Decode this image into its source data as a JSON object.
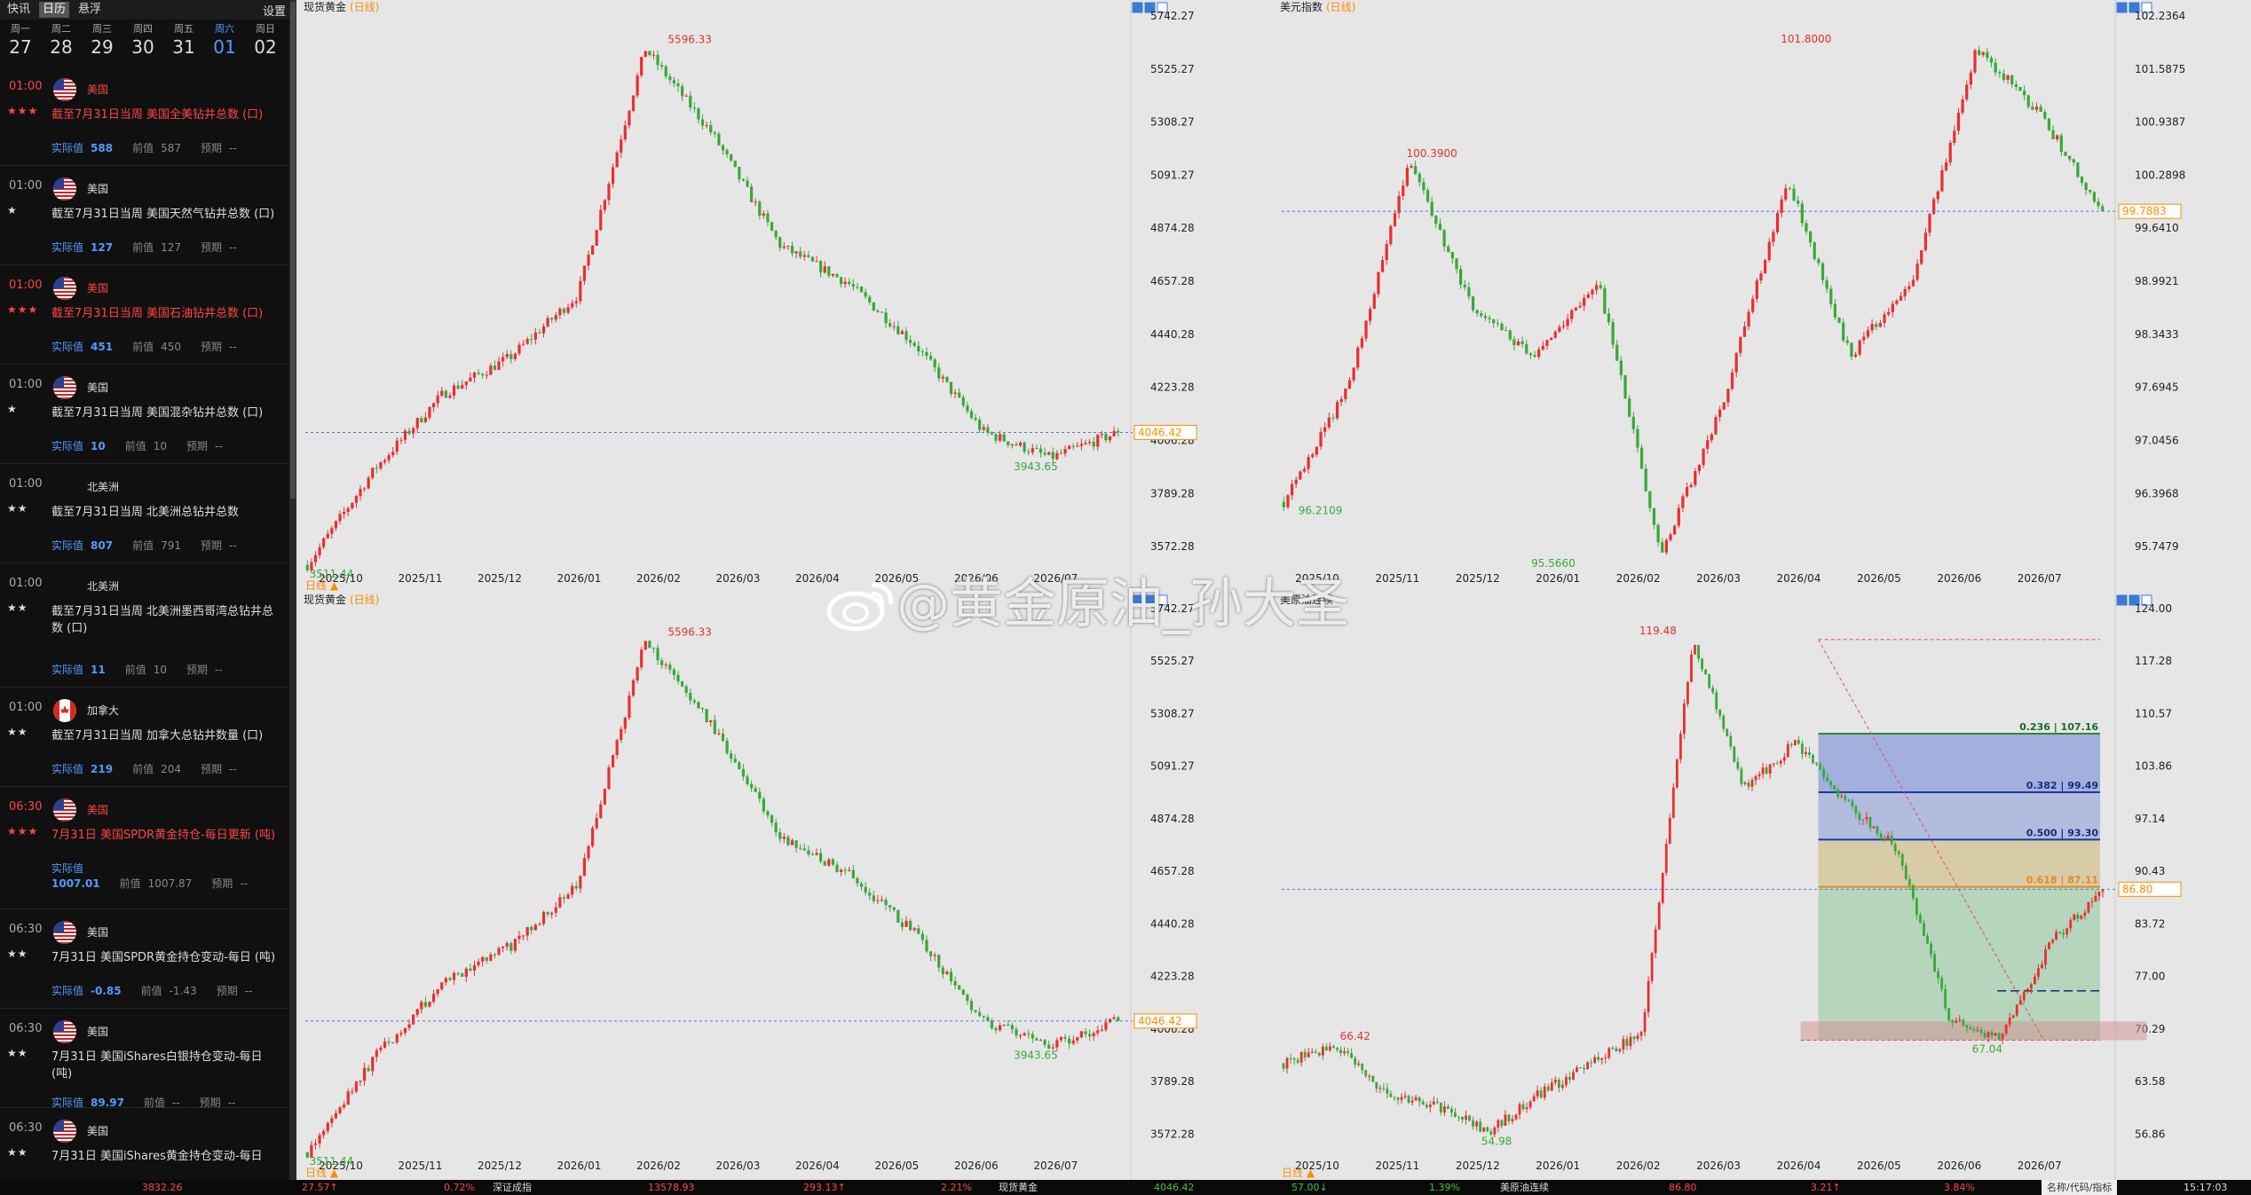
{
  "sidebar": {
    "tabs": [
      "快讯",
      "日历",
      "悬浮"
    ],
    "settings": "设置",
    "days": [
      {
        "wd": "周一",
        "dn": "27"
      },
      {
        "wd": "周二",
        "dn": "28"
      },
      {
        "wd": "周三",
        "dn": "29"
      },
      {
        "wd": "周四",
        "dn": "30"
      },
      {
        "wd": "周五",
        "dn": "31"
      },
      {
        "wd": "周六",
        "dn": "01"
      },
      {
        "wd": "周日",
        "dn": "02"
      }
    ],
    "labels": {
      "actual": "实际值",
      "prev": "前值",
      "fc": "预期"
    },
    "events": [
      {
        "time": "01:00",
        "stars": "★★★",
        "country": "美国",
        "flag": "us",
        "title": "截至7月31日当周 美国全美钻井总数 (口)",
        "actual": "588",
        "prev": "587",
        "fc": "--",
        "hi": true
      },
      {
        "time": "01:00",
        "stars": "★",
        "country": "美国",
        "flag": "us",
        "title": "截至7月31日当周 美国天然气钻井总数 (口)",
        "actual": "127",
        "prev": "127",
        "fc": "--",
        "hi": false
      },
      {
        "time": "01:00",
        "stars": "★★★",
        "country": "美国",
        "flag": "us",
        "title": "截至7月31日当周 美国石油钻井总数 (口)",
        "actual": "451",
        "prev": "450",
        "fc": "--",
        "hi": true
      },
      {
        "time": "01:00",
        "stars": "★",
        "country": "美国",
        "flag": "us",
        "title": "截至7月31日当周 美国混杂钻井总数 (口)",
        "actual": "10",
        "prev": "10",
        "fc": "--",
        "hi": false
      },
      {
        "time": "01:00",
        "stars": "★★",
        "country": "北美洲",
        "flag": "",
        "title": "截至7月31日当周 北美洲总钻井总数",
        "actual": "807",
        "prev": "791",
        "fc": "--",
        "hi": false
      },
      {
        "time": "01:00",
        "stars": "★★",
        "country": "北美洲",
        "flag": "",
        "title": "截至7月31日当周 北美洲墨西哥湾总钻井总数 (口)",
        "actual": "11",
        "prev": "10",
        "fc": "--",
        "hi": false
      },
      {
        "time": "01:00",
        "stars": "★★",
        "country": "加拿大",
        "flag": "ca",
        "title": "截至7月31日当周 加拿大总钻井数量 (口)",
        "actual": "219",
        "prev": "204",
        "fc": "--",
        "hi": false
      },
      {
        "time": "06:30",
        "stars": "★★★",
        "country": "美国",
        "flag": "us",
        "title": "7月31日 美国SPDR黄金持仓-每日更新 (吨)",
        "actual": "1007.01",
        "prev": "1007.87",
        "fc": "--",
        "hi": true
      },
      {
        "time": "06:30",
        "stars": "★★",
        "country": "美国",
        "flag": "us",
        "title": "7月31日 美国SPDR黄金持仓变动-每日 (吨)",
        "actual": "-0.85",
        "prev": "-1.43",
        "fc": "--",
        "hi": false
      },
      {
        "time": "06:30",
        "stars": "★★",
        "country": "美国",
        "flag": "us",
        "title": "7月31日 美国iShares白银持仓变动-每日 (吨)",
        "actual": "89.97",
        "prev": "--",
        "fc": "--",
        "hi": false
      },
      {
        "time": "06:30",
        "stars": "★★",
        "country": "美国",
        "flag": "us",
        "title": "7月31日 美国iShares黄金持仓变动-每日",
        "actual": "",
        "prev": "",
        "fc": "",
        "hi": false
      }
    ]
  },
  "panels": [
    {
      "id": "p1",
      "title": "现货黄金",
      "period": "(日线)",
      "yticks": [
        "5742.27",
        "5525.27",
        "5308.27",
        "5091.27",
        "4874.28",
        "4657.28",
        "4440.28",
        "4223.28",
        "4006.28",
        "3789.28",
        "3572.28"
      ],
      "xticks": [
        "2025/10",
        "2025/11",
        "2025/12",
        "2026/01",
        "2026/02",
        "2026/03",
        "2026/04",
        "2026/05",
        "2026/06",
        "2026/07"
      ],
      "last": "4046.42",
      "high": "5596.33",
      "low": "3511.44",
      "low2": "3943.65",
      "period_btn": "日线"
    },
    {
      "id": "p2",
      "title": "美元指数",
      "period": "(日线)",
      "yticks": [
        "102.2364",
        "101.5875",
        "100.9387",
        "100.2898",
        "99.6410",
        "98.9921",
        "98.3433",
        "97.6945",
        "97.0456",
        "96.3968",
        "95.7479"
      ],
      "xticks": [
        "2025/10",
        "2025/11",
        "2025/12",
        "2026/01",
        "2026/02",
        "2026/03",
        "2026/04",
        "2026/05",
        "2026/06",
        "2026/07"
      ],
      "last": "99.7883",
      "high": "101.8000",
      "high2": "100.3900",
      "low": "96.2109",
      "low2": "95.5660"
    },
    {
      "id": "p3",
      "title": "现货黄金",
      "period": "(日线)",
      "yticks": [
        "5742.27",
        "5525.27",
        "5308.27",
        "5091.27",
        "4874.28",
        "4657.28",
        "4440.28",
        "4223.28",
        "4006.28",
        "3789.28",
        "3572.28"
      ],
      "xticks": [
        "2025/10",
        "2025/11",
        "2025/12",
        "2026/01",
        "2026/02",
        "2026/03",
        "2026/04",
        "2026/05",
        "2026/06",
        "2026/07"
      ],
      "last": "4046.42",
      "high": "5596.33",
      "low": "3511.44",
      "low2": "3943.65",
      "period_btn": "日线"
    },
    {
      "id": "p4",
      "title": "美原油连续",
      "period": "",
      "yticks": [
        "124.00",
        "117.28",
        "110.57",
        "103.86",
        "97.14",
        "90.43",
        "83.72",
        "77.00",
        "70.29",
        "63.58",
        "56.86"
      ],
      "xticks": [
        "2025/10",
        "2025/11",
        "2025/12",
        "2026/01",
        "2026/02",
        "2026/03",
        "2026/04",
        "2026/05",
        "2026/06",
        "2026/07"
      ],
      "last": "86.80",
      "high": "119.48",
      "high2": "66.42",
      "low": "54.98",
      "low2": "67.04",
      "period_btn": "日线",
      "fib": [
        "0.236 | 107.16",
        "0.382 | 99.49",
        "0.500 | 93.30",
        "0.618 | 87.11"
      ]
    }
  ],
  "chart_data": [
    {
      "type": "candlestick",
      "title": "现货黄金",
      "period": "日线",
      "x": [
        "2025/10",
        "2025/11",
        "2025/12",
        "2026/01",
        "2026/02",
        "2026/03",
        "2026/04",
        "2026/05",
        "2026/06",
        "2026/07"
      ],
      "anchors": [
        3511.44,
        3900,
        4200,
        4350,
        4600,
        5596.33,
        5250,
        4800,
        4650,
        4400,
        4050,
        3943.65,
        4046.42
      ],
      "ylim": [
        3500,
        5742.27
      ],
      "last": 4046.42
    },
    {
      "type": "candlestick",
      "title": "美元指数",
      "period": "日线",
      "x": [
        "2025/10",
        "2025/11",
        "2025/12",
        "2026/01",
        "2026/02",
        "2026/03",
        "2026/04",
        "2026/05",
        "2026/06",
        "2026/07"
      ],
      "anchors": [
        96.2109,
        97.6,
        100.39,
        98.6,
        98.0,
        98.9,
        95.566,
        97.5,
        100.2,
        98.0,
        99.0,
        101.8,
        101.0,
        99.7883
      ],
      "ylim": [
        95.4,
        102.2364
      ],
      "last": 99.7883
    },
    {
      "type": "candlestick",
      "title": "现货黄金",
      "period": "日线",
      "x": [
        "2025/10",
        "2025/11",
        "2025/12",
        "2026/01",
        "2026/02",
        "2026/03",
        "2026/04",
        "2026/05",
        "2026/06",
        "2026/07"
      ],
      "anchors": [
        3511.44,
        3900,
        4200,
        4350,
        4600,
        5596.33,
        5250,
        4800,
        4650,
        4400,
        4050,
        3943.65,
        4046.42
      ],
      "ylim": [
        3500,
        5742.27
      ],
      "last": 4046.42
    },
    {
      "type": "candlestick",
      "title": "美原油连续",
      "x": [
        "2025/10",
        "2025/11",
        "2025/12",
        "2026/01",
        "2026/02",
        "2026/03",
        "2026/04",
        "2026/05",
        "2026/06",
        "2026/07"
      ],
      "anchors": [
        64.0,
        66.42,
        60.0,
        58.5,
        54.98,
        60.0,
        64.0,
        68.0,
        119.48,
        100.0,
        106.0,
        98.0,
        92.0,
        70.0,
        67.04,
        80.0,
        86.8
      ],
      "ylim": [
        52,
        124
      ],
      "last": 86.8,
      "fib_levels": [
        {
          "ratio": 0.236,
          "value": 107.16
        },
        {
          "ratio": 0.382,
          "value": 99.49
        },
        {
          "ratio": 0.5,
          "value": 93.3
        },
        {
          "ratio": 0.618,
          "value": 87.11
        }
      ]
    }
  ],
  "statusbar": [
    {
      "t": "3832.26",
      "c": "#ff4545"
    },
    {
      "t": "27.57↑",
      "c": "#ff4545"
    },
    {
      "t": "0.72%",
      "c": "#ff4545"
    },
    {
      "t": "深证成指",
      "c": "#ddd"
    },
    {
      "t": "13578.93",
      "c": "#ff4545"
    },
    {
      "t": "293.13↑",
      "c": "#ff4545"
    },
    {
      "t": "2.21%",
      "c": "#ff4545"
    },
    {
      "t": "现货黄金",
      "c": "#ddd"
    },
    {
      "t": "4046.42",
      "c": "#3cc43c"
    },
    {
      "t": "57.00↓",
      "c": "#3cc43c"
    },
    {
      "t": "1.39%",
      "c": "#3cc43c"
    },
    {
      "t": "美原油连续",
      "c": "#ddd"
    },
    {
      "t": "86.80",
      "c": "#ff4545"
    },
    {
      "t": "3.21↑",
      "c": "#ff4545"
    },
    {
      "t": "3.84%",
      "c": "#ff4545"
    },
    {
      "t": "名称/代码/指标",
      "c": "#ccc"
    },
    {
      "t": "15:17:03",
      "c": "#ddd"
    }
  ],
  "watermark": "@黄金原油_孙大圣",
  "colors": {
    "up": "#e83030",
    "down": "#3aa83a",
    "accent": "#ff8c00",
    "blue": "#4f9cff"
  }
}
